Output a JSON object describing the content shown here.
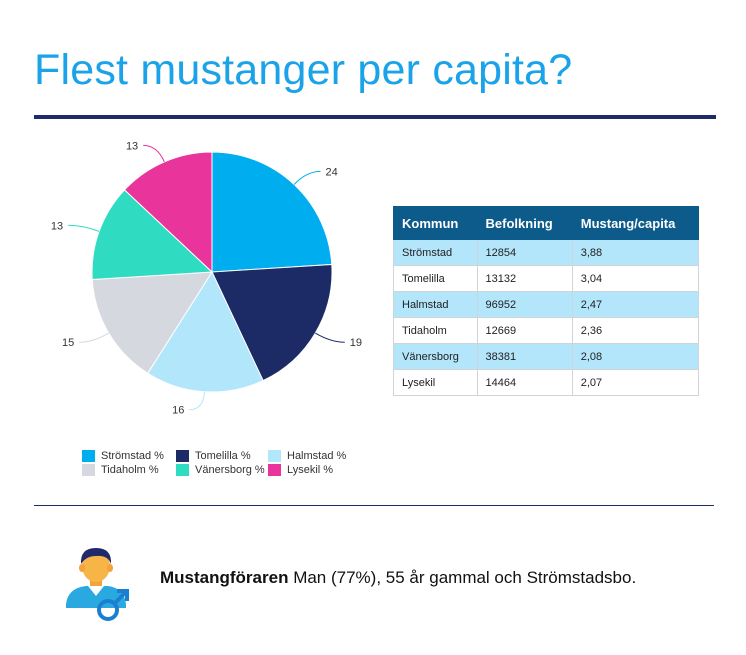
{
  "title": "Flest mustanger per capita?",
  "chart_data": {
    "type": "pie",
    "categories": [
      "Strömstad %",
      "Tomelilla %",
      "Halmstad %",
      "Tidaholm %",
      "Vänersborg %",
      "Lysekil %"
    ],
    "values": [
      24,
      19,
      16,
      15,
      13,
      13
    ],
    "colors": [
      "#00aeef",
      "#1c2a66",
      "#b1e6fb",
      "#d6d8e0",
      "#2fdcc2",
      "#e8349b"
    ],
    "legend_position": "bottom"
  },
  "table": {
    "headers": [
      "Kommun",
      "Befolkning",
      "Mustang/capita"
    ],
    "rows": [
      [
        "Strömstad",
        "12854",
        "3,88"
      ],
      [
        "Tomelilla",
        "13132",
        "3,04"
      ],
      [
        "Halmstad",
        "96952",
        "2,47"
      ],
      [
        "Tidaholm",
        "12669",
        "2,36"
      ],
      [
        "Vänersborg",
        "38381",
        "2,08"
      ],
      [
        "Lysekil",
        "14464",
        "2,07"
      ]
    ]
  },
  "footer": {
    "bold": "Mustangföraren",
    "text": " Man (77%), 55 år gammal och Strömstadsbo.",
    "icon": "male-driver-icon"
  }
}
